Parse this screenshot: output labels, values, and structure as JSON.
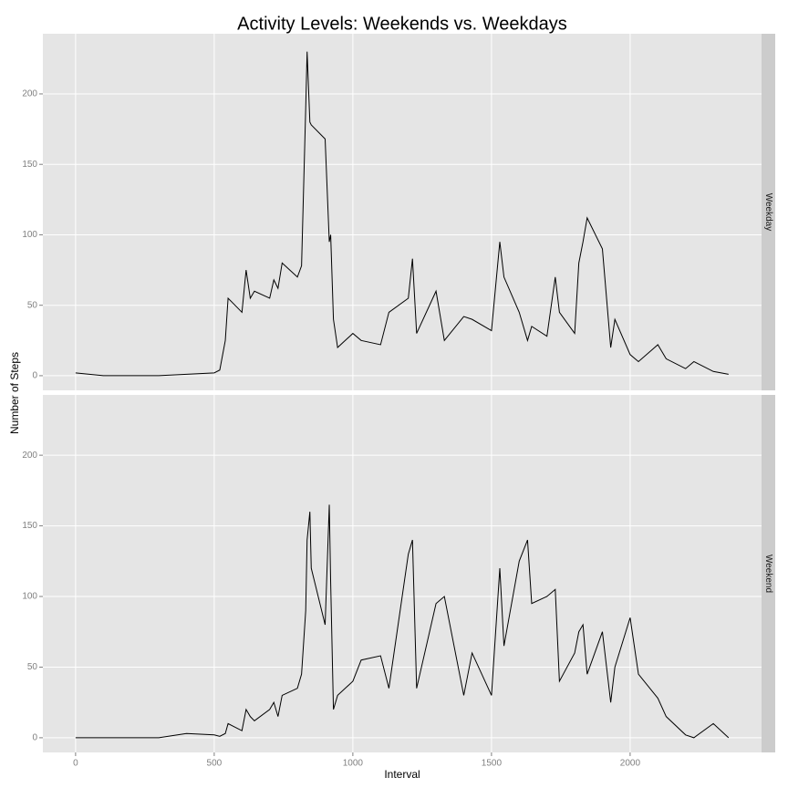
{
  "chart_data": {
    "type": "line",
    "title": "Activity Levels: Weekends vs. Weekdays",
    "x_label": "Interval",
    "y_label": "Number of Steps",
    "x": [
      0,
      100,
      200,
      300,
      400,
      500,
      520,
      540,
      550,
      600,
      615,
      630,
      645,
      700,
      715,
      730,
      745,
      800,
      815,
      830,
      835,
      845,
      850,
      900,
      915,
      920,
      930,
      945,
      1000,
      1030,
      1100,
      1130,
      1200,
      1215,
      1230,
      1300,
      1330,
      1400,
      1430,
      1500,
      1530,
      1545,
      1600,
      1630,
      1645,
      1700,
      1730,
      1745,
      1800,
      1815,
      1830,
      1845,
      1900,
      1930,
      1945,
      2000,
      2030,
      2100,
      2130,
      2200,
      2230,
      2300,
      2355
    ],
    "series": [
      {
        "name": "Weekday",
        "color": "#000000",
        "values": [
          2,
          0,
          0,
          0,
          1,
          2,
          4,
          25,
          55,
          45,
          75,
          55,
          60,
          55,
          68,
          62,
          80,
          70,
          78,
          190,
          230,
          180,
          178,
          168,
          95,
          100,
          40,
          20,
          30,
          25,
          22,
          45,
          55,
          83,
          30,
          60,
          25,
          42,
          40,
          32,
          95,
          70,
          45,
          25,
          35,
          28,
          70,
          45,
          30,
          80,
          95,
          112,
          90,
          20,
          40,
          15,
          10,
          22,
          12,
          5,
          10,
          3,
          1
        ]
      },
      {
        "name": "Weekend",
        "color": "#000000",
        "values": [
          0,
          0,
          0,
          0,
          3,
          2,
          1,
          3,
          10,
          5,
          20,
          15,
          12,
          20,
          25,
          15,
          30,
          35,
          45,
          90,
          140,
          160,
          120,
          80,
          165,
          110,
          20,
          30,
          40,
          55,
          58,
          35,
          130,
          140,
          35,
          95,
          100,
          30,
          60,
          30,
          120,
          65,
          125,
          140,
          95,
          100,
          105,
          40,
          60,
          75,
          80,
          45,
          75,
          25,
          50,
          85,
          45,
          28,
          15,
          2,
          0,
          10,
          0
        ]
      }
    ],
    "xlim": [
      -118,
      2474
    ],
    "ylim": [
      -10.4,
      242.7
    ],
    "xticks": [
      0,
      500,
      1000,
      1500,
      2000
    ],
    "yticks": [
      0,
      50,
      100,
      150,
      200
    ],
    "grid": true
  }
}
